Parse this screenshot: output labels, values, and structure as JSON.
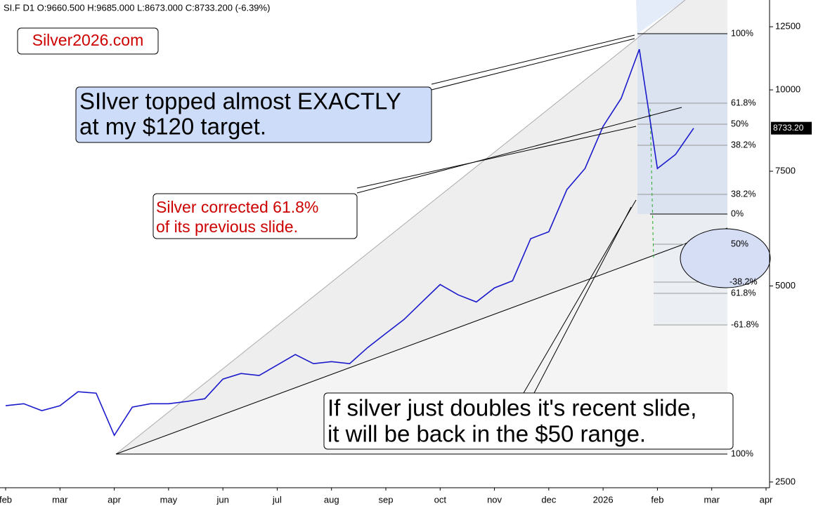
{
  "chart_data": {
    "type": "line",
    "header": "SI.F  D1  O:9660.500 H:9685.000 L:8673.000 C:8733.200  (-6.39%)",
    "price_badge": "8733.20",
    "log_scale": true,
    "ylim": [
      2450,
      13740
    ],
    "yticks": [
      12500,
      10000,
      7500,
      5000,
      2500
    ],
    "categories": [
      "feb",
      null,
      null,
      "mar",
      null,
      null,
      "apr",
      null,
      null,
      "may",
      null,
      null,
      "jun",
      null,
      null,
      "jul",
      null,
      null,
      "aug",
      null,
      null,
      "sep",
      null,
      null,
      "oct",
      null,
      null,
      "nov",
      null,
      null,
      "dec",
      null,
      null,
      "2026",
      null,
      null,
      "feb",
      null,
      null,
      "mar",
      null,
      null,
      "apr"
    ],
    "series": [
      {
        "name": "SI.F",
        "color": "#1a1acc",
        "values": [
          3274,
          3297,
          3218,
          3274,
          3440,
          3423,
          2949,
          3258,
          3297,
          3297,
          3323,
          3356,
          3597,
          3669,
          3643,
          3780,
          3923,
          3799,
          3826,
          3799,
          4022,
          4228,
          4441,
          4725,
          5026,
          4844,
          4725,
          4966,
          5092,
          5910,
          6056,
          7028,
          7574,
          8790,
          9706,
          11546,
          7574,
          7958,
          8733.2,
          null,
          null,
          null,
          null
        ]
      }
    ],
    "annotations": {
      "site": "Silver2026.com",
      "top_call": [
        "SIlver topped almost EXACTLY",
        "at my $120 target."
      ],
      "correction": [
        "Silver corrected 61.8%",
        "of its previous slide."
      ],
      "projection": [
        "If silver just doubles it's recent slide,",
        "it will be back in the $50 range."
      ]
    },
    "fib_labels": [
      "100%",
      "61.8%",
      "50%",
      "38.2%",
      "38.2%",
      "0%",
      "50%",
      "-38.2%",
      "61.8%",
      "-61.8%",
      "100%"
    ]
  }
}
